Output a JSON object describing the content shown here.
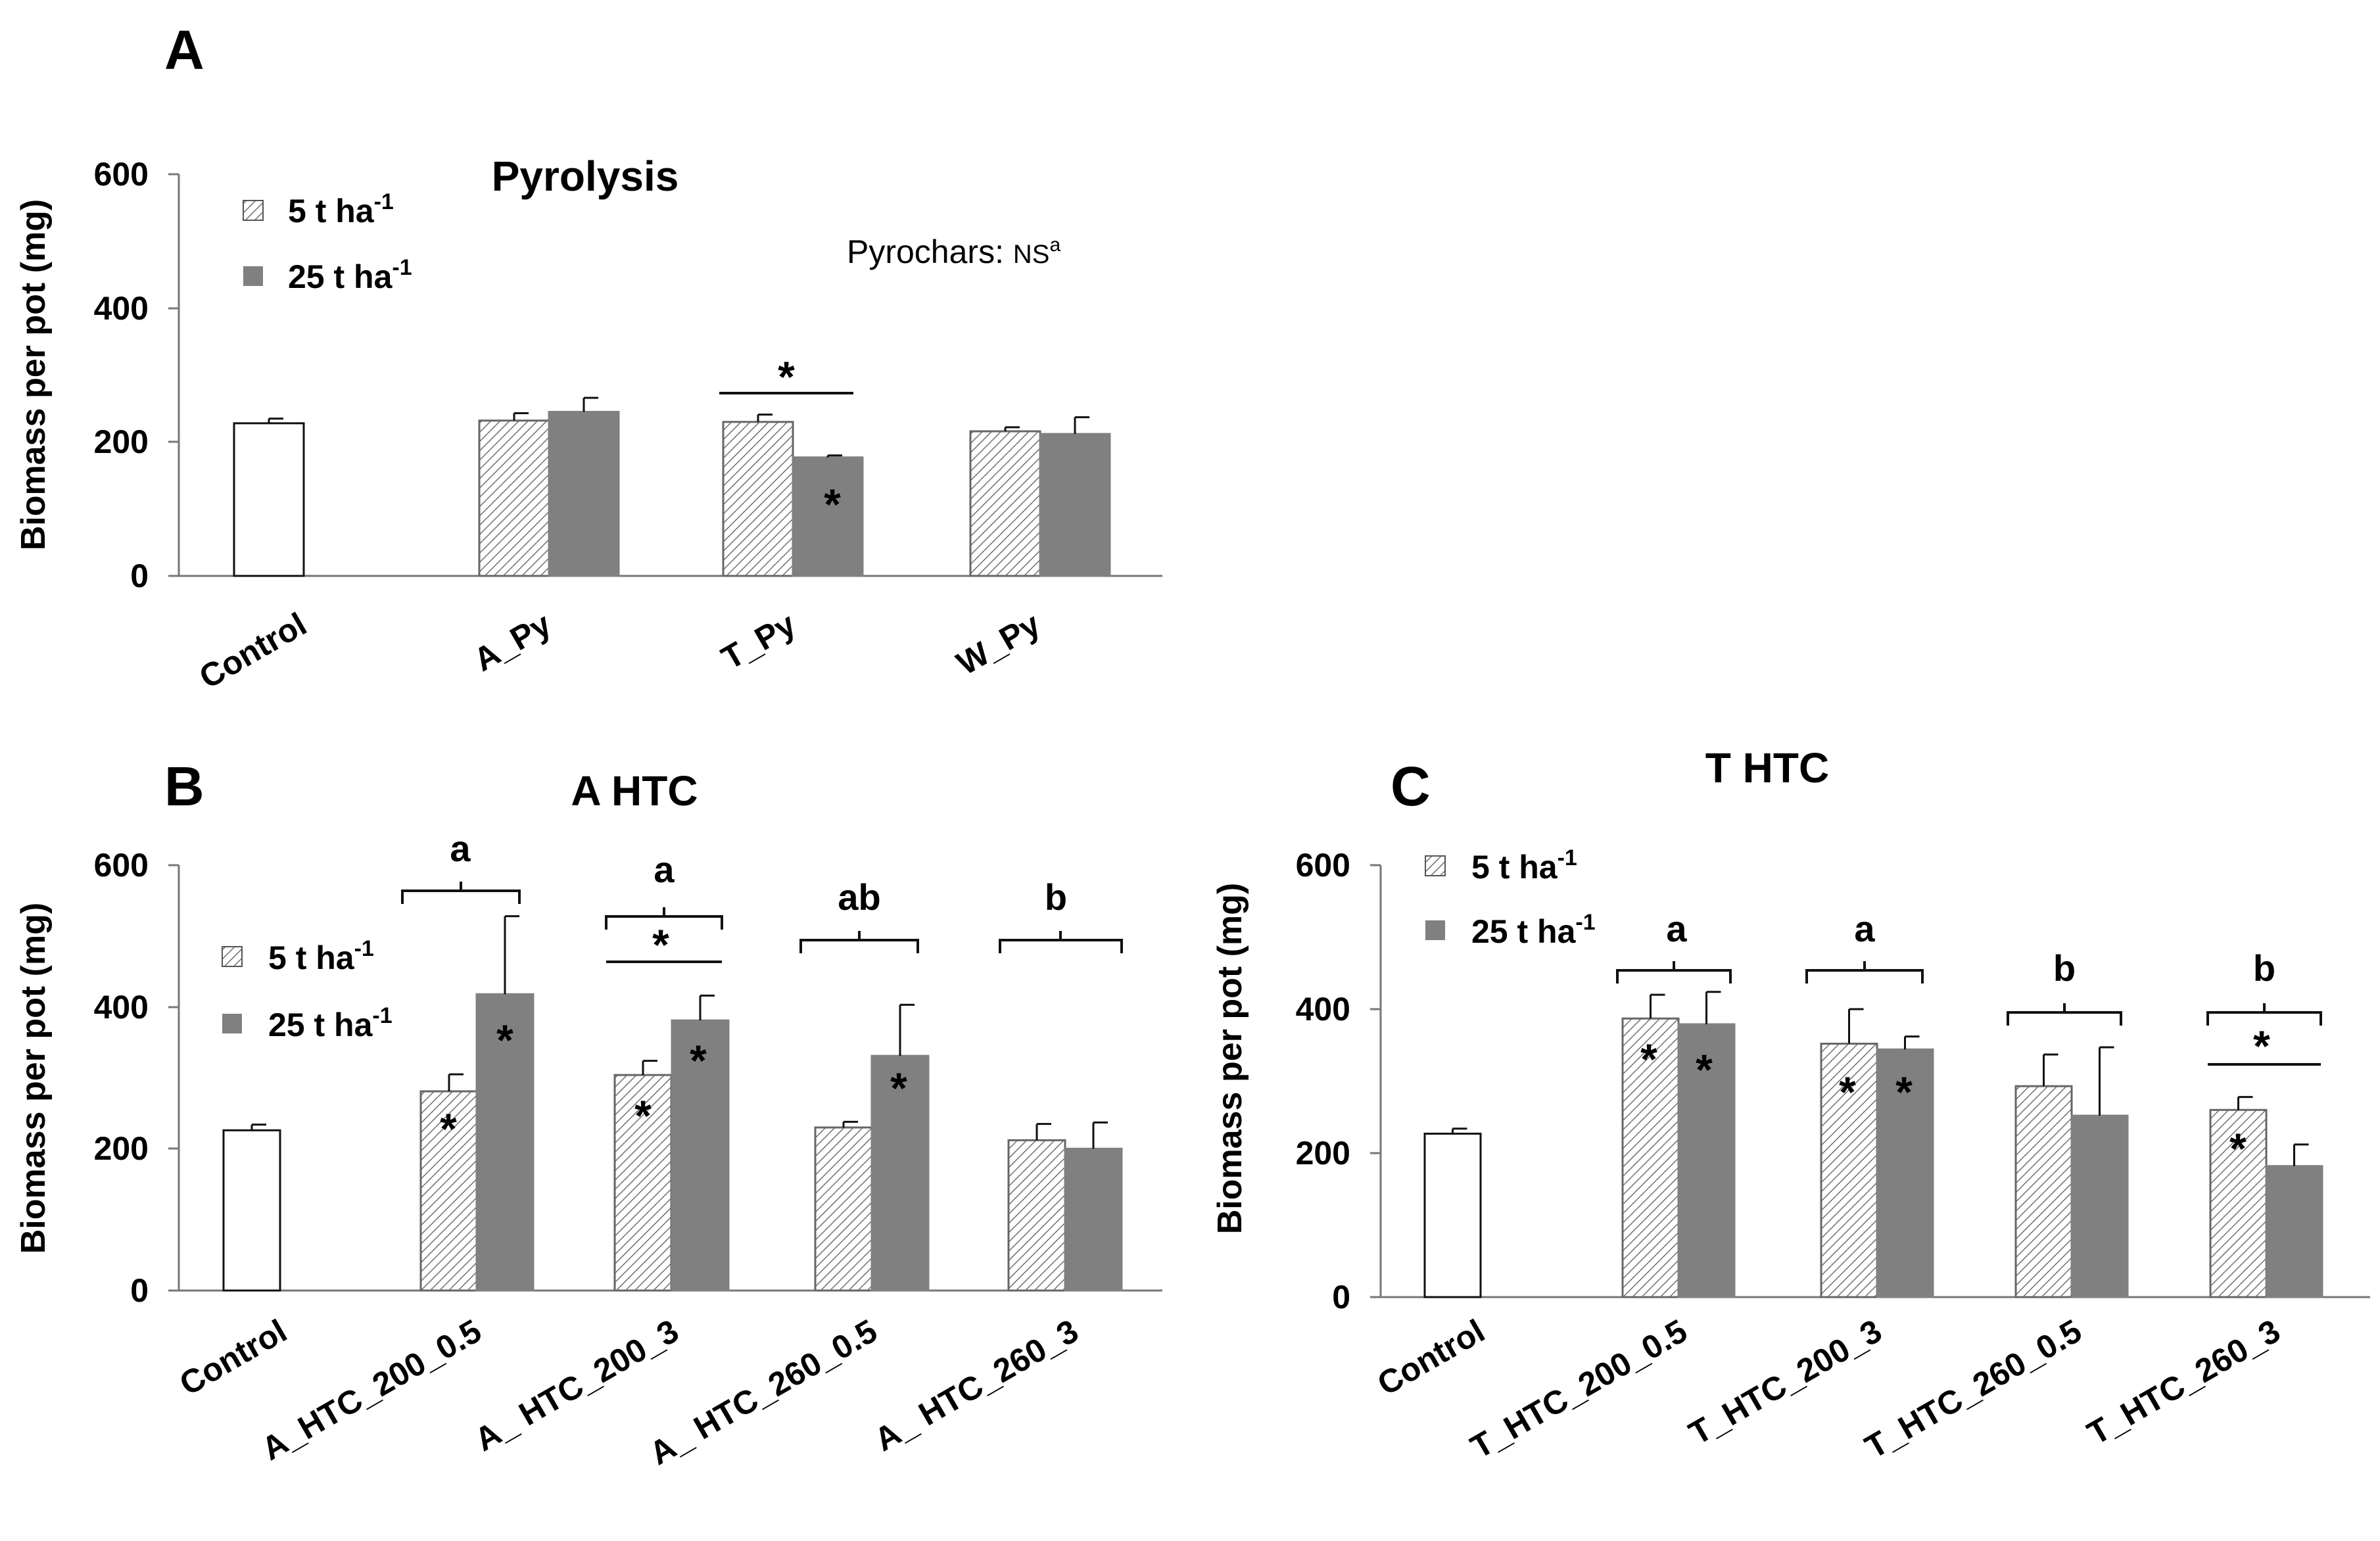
{
  "chart_data": [
    {
      "panel": "A",
      "type": "bar",
      "title": "Pyrolysis",
      "ylabel": "Biomass per pot (mg)",
      "ylim": [
        0,
        600
      ],
      "yticks": [
        "0",
        "200",
        "400",
        "600"
      ],
      "categories": [
        "Control",
        "A_Py",
        "T_Py",
        "W_Py"
      ],
      "control": {
        "value": 228,
        "err": 7
      },
      "series": [
        {
          "name": "5 t ha",
          "sup": "-1",
          "values": [
            null,
            232,
            230,
            216
          ],
          "errors": [
            null,
            11,
            11,
            6
          ]
        },
        {
          "name": "25 t ha",
          "sup": "-1",
          "values": [
            null,
            245,
            177,
            212
          ],
          "errors": [
            null,
            21,
            3,
            25
          ]
        }
      ],
      "annotations": {
        "note_prefix": "Pyrochars: ",
        "note_ns": "NS",
        "note_sup": "a",
        "bracket_label": "*",
        "bar_star": "*"
      }
    },
    {
      "panel": "B",
      "type": "bar",
      "title": "A HTC",
      "ylabel": "Biomass per pot (mg)",
      "ylim": [
        0,
        600
      ],
      "yticks": [
        "0",
        "200",
        "400",
        "600"
      ],
      "categories": [
        "Control",
        "A_HTC_200_0.5",
        "A_ HTC_200_3",
        "A_ HTC_260_0.5",
        "A_ HTC_260_3"
      ],
      "control": {
        "value": 226,
        "err": 8
      },
      "series": [
        {
          "name": "5 t ha",
          "sup": "-1",
          "values": [
            null,
            281,
            304,
            230,
            212
          ],
          "errors": [
            null,
            24,
            20,
            8,
            23
          ]
        },
        {
          "name": "25 t ha",
          "sup": "-1",
          "values": [
            null,
            418,
            381,
            331,
            200
          ],
          "errors": [
            null,
            110,
            35,
            72,
            37
          ]
        }
      ],
      "group_letters": [
        "a",
        "a",
        "ab",
        "b"
      ],
      "annotations": {
        "star": "*"
      }
    },
    {
      "panel": "C",
      "type": "bar",
      "title": "T HTC",
      "ylabel": "Biomass per pot (mg)",
      "ylim": [
        0,
        600
      ],
      "yticks": [
        "0",
        "200",
        "400",
        "600"
      ],
      "categories": [
        "Control",
        "T_HTC_200_0.5",
        "T_HTC_200_3",
        "T_HTC_260_0.5",
        "T_HTC_260_3"
      ],
      "control": {
        "value": 227,
        "err": 7
      },
      "series": [
        {
          "name": "5 t ha",
          "sup": "-1",
          "values": [
            null,
            387,
            352,
            293,
            260
          ],
          "errors": [
            null,
            33,
            48,
            44,
            18
          ]
        },
        {
          "name": "25 t ha",
          "sup": "-1",
          "values": [
            null,
            379,
            344,
            252,
            182
          ],
          "errors": [
            null,
            45,
            18,
            95,
            30
          ]
        }
      ],
      "group_letters": [
        "a",
        "a",
        "b",
        "b"
      ],
      "annotations": {
        "star": "*"
      }
    }
  ]
}
